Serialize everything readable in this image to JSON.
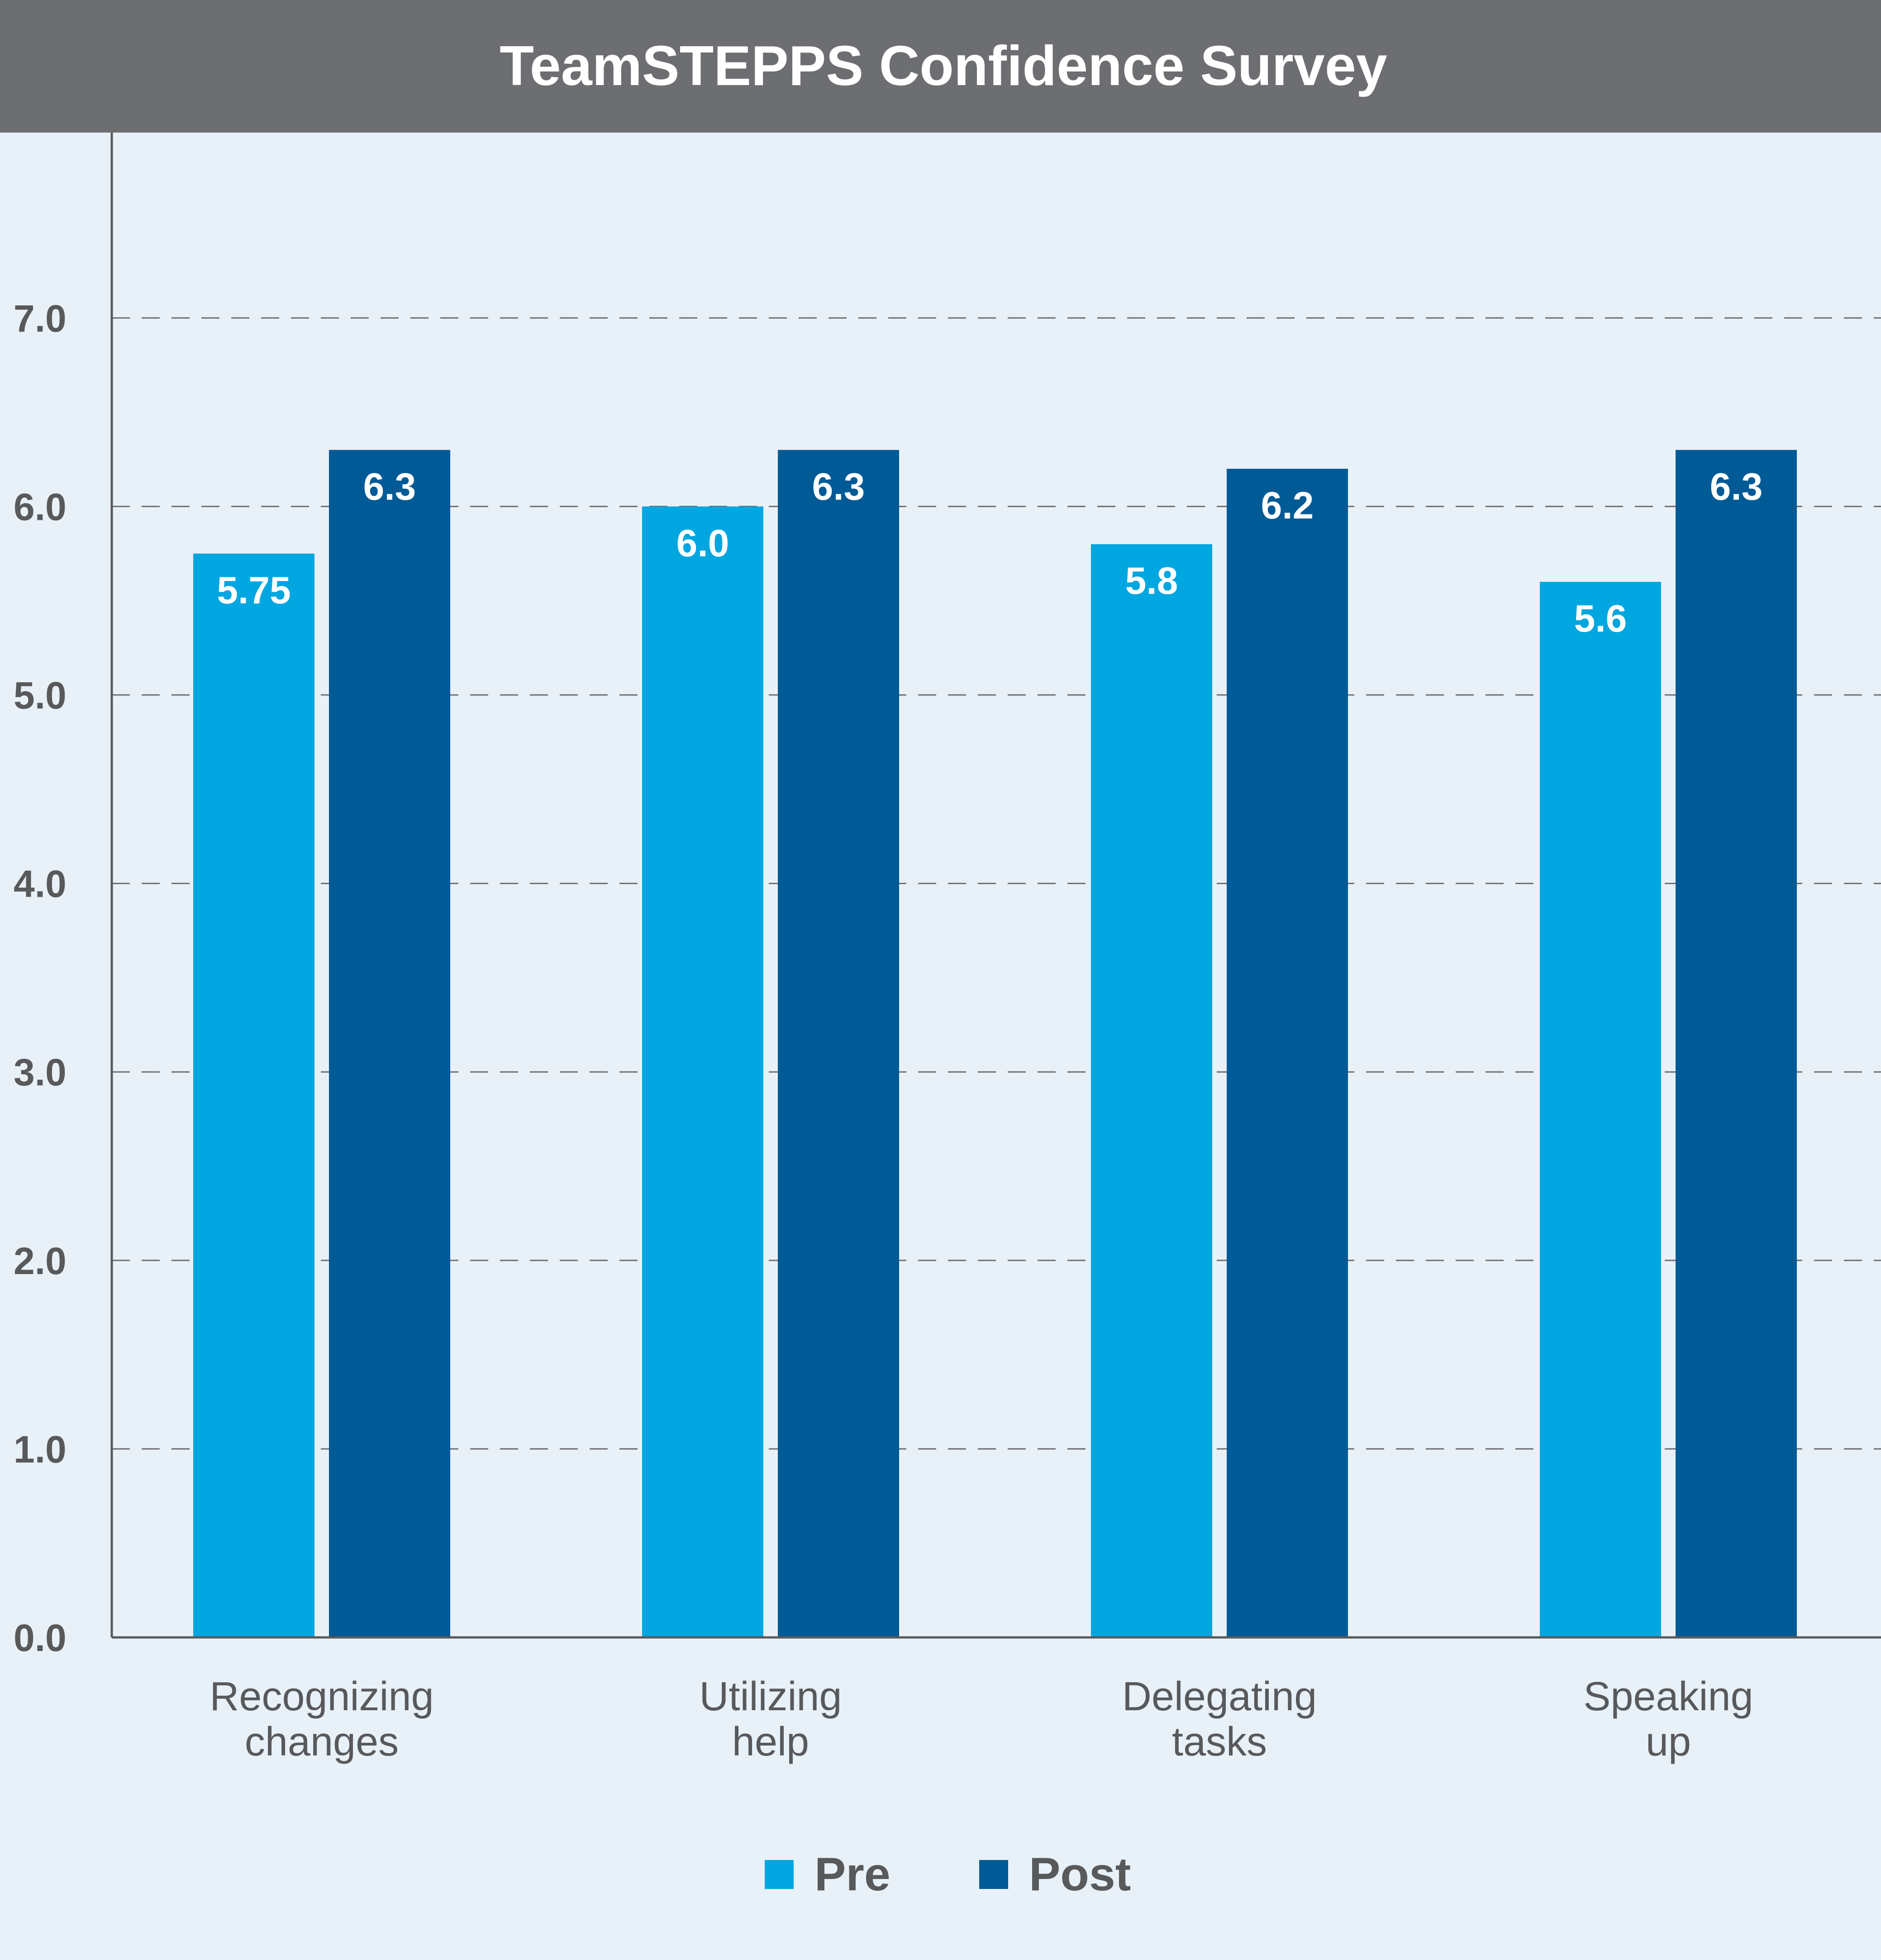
{
  "chart_data": {
    "type": "bar",
    "title": "TeamSTEPPS Confidence Survey",
    "categories": [
      [
        "Recognizing",
        "changes"
      ],
      [
        "Utilizing",
        "help"
      ],
      [
        "Delegating",
        "tasks"
      ],
      [
        "Speaking",
        "up"
      ]
    ],
    "series": [
      {
        "name": "Pre",
        "color": "#00a6e0",
        "values": [
          5.75,
          6.0,
          5.8,
          5.6
        ],
        "labels": [
          "5.75",
          "6.0",
          "5.8",
          "5.6"
        ]
      },
      {
        "name": "Post",
        "color": "#005a96",
        "values": [
          6.3,
          6.3,
          6.2,
          6.3
        ],
        "labels": [
          "6.3",
          "6.3",
          "6.2",
          "6.3"
        ]
      }
    ],
    "yticks": [
      "0.0",
      "1.0",
      "2.0",
      "3.0",
      "4.0",
      "5.0",
      "6.0",
      "7.0"
    ],
    "ylim": [
      0,
      8
    ],
    "grid": "dashed horizontal",
    "legend_position": "bottom-center",
    "colors": {
      "background": "#e9f1f8",
      "title_bar": "#6d6e71",
      "text": "#58595b",
      "axis": "#58595b"
    }
  }
}
